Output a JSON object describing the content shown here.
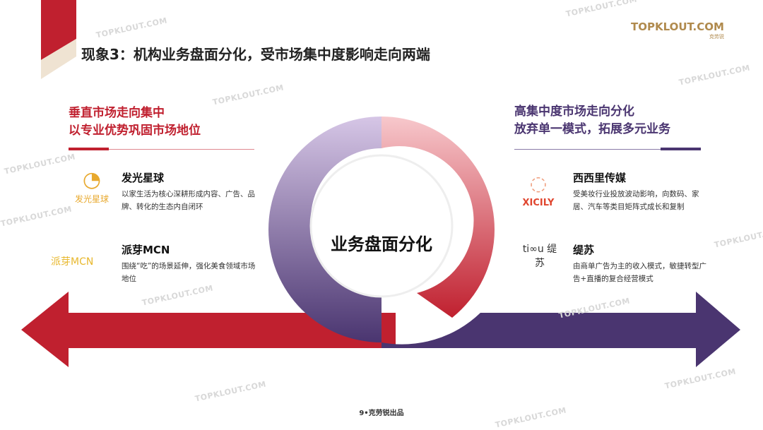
{
  "title": "现象3：机构业务盘面分化，受市场集中度影响走向两端",
  "brand": {
    "name": "TOPKLOUT.COM",
    "tagline": "克劳锐"
  },
  "left": {
    "heading_line1": "垂直市场走向集中",
    "heading_line2": "以专业优势巩固市场地位",
    "color": "#c0202f",
    "items": [
      {
        "name": "发光星球",
        "logo_text": "发光星球",
        "desc": "以家生活为核心深耕形成内容、广告、品牌、转化的生态内自闭环"
      },
      {
        "name": "派芽MCN",
        "logo_text": "派芽MCN",
        "desc": "围绕“吃”的场景延伸，强化美食领域市场地位"
      }
    ]
  },
  "right": {
    "heading_line1": "高集中度市场走向分化",
    "heading_line2": "放弃单一模式，拓展多元业务",
    "color": "#4a3570",
    "items": [
      {
        "name": "西西里传媒",
        "logo_text": "XICILY",
        "desc": "受美妆行业投放波动影响，向数码、家居、汽车等类目矩阵式成长和复制"
      },
      {
        "name": "缇苏",
        "logo_text": "ti∞u 缇苏",
        "desc": "由商单广告为主的收入模式，敏捷转型广告+直播的复合经营模式"
      }
    ]
  },
  "center": {
    "label": "业务盘面分化"
  },
  "footer": "9•克劳锐出品",
  "watermark": "TOPKLOUT.COM"
}
